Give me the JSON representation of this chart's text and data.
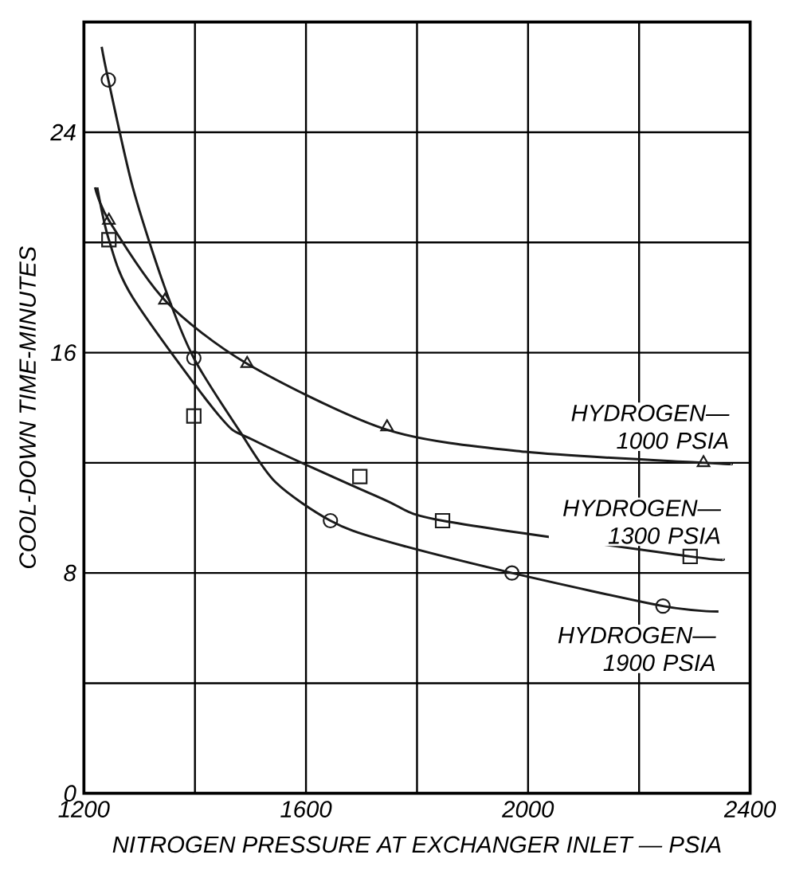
{
  "chart_data": {
    "type": "line",
    "xlabel": "NITROGEN PRESSURE AT EXCHANGER INLET — PSIA",
    "ylabel": "COOL-DOWN TIME-MINUTES",
    "xlim": [
      1200,
      2400
    ],
    "ylim": [
      0,
      28
    ],
    "xticks": [
      1200,
      {
        "value": 1400,
        "label": null
      },
      1600,
      {
        "value": 1800,
        "label": null
      },
      2000,
      {
        "value": 2200,
        "label": null
      },
      2400
    ],
    "yticks": [
      0,
      {
        "value": 4,
        "label": null
      },
      8,
      {
        "value": 12,
        "label": null
      },
      16,
      {
        "value": 20,
        "label": null
      },
      24
    ],
    "grid": true,
    "series": [
      {
        "type": "scatter",
        "marker": "triangle",
        "color": "#1a1a1a",
        "x": [
          1245,
          1346,
          1494,
          1746,
          2316
        ],
        "values": [
          20.8,
          17.9,
          15.6,
          13.3,
          12.0
        ]
      },
      {
        "type": "scatter",
        "marker": "square",
        "color": "#1a1a1a",
        "x": [
          1245,
          1398,
          1697,
          1846,
          2292
        ],
        "values": [
          20.1,
          13.7,
          11.5,
          9.9,
          8.6
        ]
      },
      {
        "type": "scatter",
        "marker": "circle",
        "color": "#1a1a1a",
        "x": [
          1244,
          1398,
          1644,
          1971,
          2243
        ],
        "values": [
          25.9,
          15.8,
          9.9,
          8.0,
          6.8
        ]
      },
      {
        "name": "HYDROGEN— 1000 PSIA",
        "color": "#1a1a1a",
        "x": [
          1220,
          1245,
          1346,
          1494,
          1746,
          1995,
          2316,
          2367
        ],
        "values": [
          22.0,
          20.8,
          17.9,
          15.6,
          13.2,
          12.4,
          12.0,
          11.95
        ]
      },
      {
        "name": "HYDROGEN— 1300 PSIA",
        "color": "#1a1a1a",
        "x": [
          1224,
          1245,
          1288,
          1444,
          1508,
          1737,
          1846,
          2292,
          2352
        ],
        "values": [
          22.0,
          20.1,
          18.0,
          13.7,
          12.8,
          10.7,
          9.9,
          8.6,
          8.5
        ]
      },
      {
        "name": "HYDROGEN— 1900 PSIA",
        "color": "#1a1a1a",
        "x": [
          1232,
          1244,
          1288,
          1345,
          1398,
          1479,
          1545,
          1644,
          1737,
          1971,
          2243,
          2343
        ],
        "values": [
          27.1,
          25.9,
          22.0,
          18.4,
          15.8,
          13.2,
          11.3,
          9.9,
          9.2,
          8.0,
          6.8,
          6.6
        ]
      }
    ]
  }
}
